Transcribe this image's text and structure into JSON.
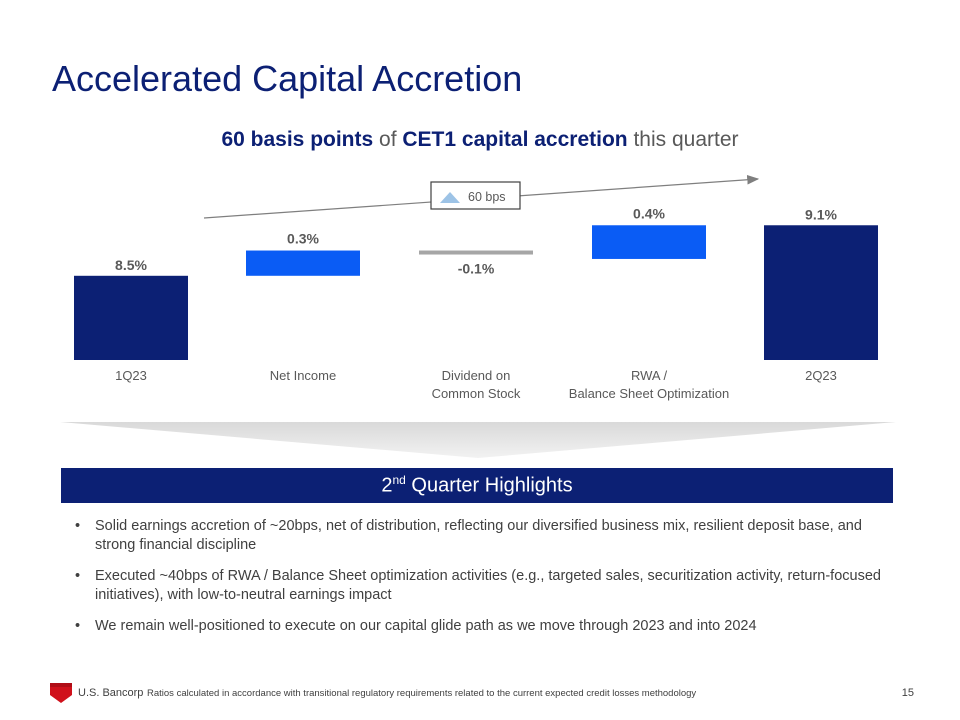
{
  "slide": {
    "title": "Accelerated Capital Accretion",
    "subtitle": {
      "part1": "60 basis points",
      "part2": " of ",
      "part3": "CET1 capital accretion",
      "part4": " this quarter"
    },
    "page_number": "15"
  },
  "chart_data": {
    "type": "bar",
    "subtype": "waterfall",
    "categories": [
      "1Q23",
      "Net Income",
      "Dividend on\nCommon Stock",
      "RWA /\nBalance Sheet Optimization",
      "2Q23"
    ],
    "values": [
      8.5,
      0.3,
      -0.1,
      0.4,
      9.1
    ],
    "value_labels": [
      "8.5%",
      "0.3%",
      "-0.1%",
      "0.4%",
      "9.1%"
    ],
    "bar_kinds": [
      "total",
      "delta",
      "delta",
      "delta",
      "total"
    ],
    "ylim": [
      7.5,
      9.4
    ],
    "annotation": {
      "text": "60 bps",
      "value": 0.6
    },
    "grid": false,
    "colors": {
      "total": "#0c2074",
      "increase": "#0a5cf5",
      "decrease": "#a6a6a6",
      "annotation_triangle": "#9dc3e6",
      "arrow": "#7f7f7f",
      "label": "#595959"
    }
  },
  "highlights": {
    "heading_prefix": "2",
    "heading_sup": "nd",
    "heading_suffix": " Quarter Highlights",
    "bullets": [
      "Solid earnings accretion of ~20bps, net of distribution, reflecting our diversified business mix, resilient deposit base, and strong financial discipline",
      "Executed ~40bps of RWA / Balance Sheet optimization activities (e.g., targeted sales, securitization activity, return-focused initiatives), with low-to-neutral earnings impact",
      "We remain well-positioned to execute on our capital glide path as we move through 2023 and into 2024"
    ]
  },
  "footer": {
    "brand": "U.S. Bancorp",
    "note": "Ratios calculated in accordance with transitional regulatory requirements related to the current expected credit losses methodology"
  },
  "theme": {
    "navy": "#0c2074",
    "brand_red": "#d0111b"
  }
}
